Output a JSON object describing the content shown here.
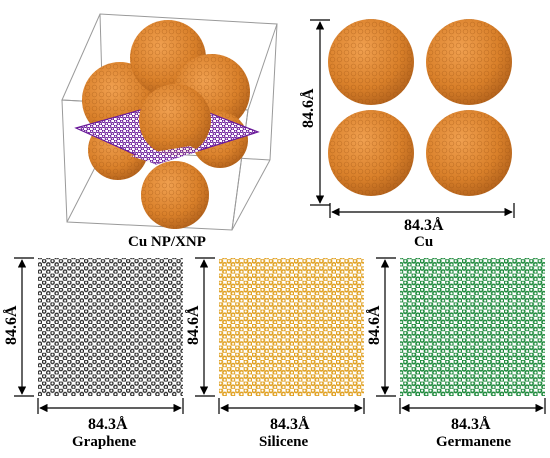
{
  "labels": {
    "cu_np_xnp": "Cu NP/XNP",
    "cu": "Cu",
    "graphene": "Graphene",
    "silicene": "Silicene",
    "germanene": "Germanene"
  },
  "dimensions": {
    "height": "84.6Å",
    "width": "84.3Å"
  },
  "colors": {
    "copper": "#d9802a",
    "copper_dark": "#b4621a",
    "graphene": "#3a3a3a",
    "silicene": "#e0a020",
    "germanene": "#1e8a3c",
    "sheet_purple": "#6a1a9a"
  }
}
